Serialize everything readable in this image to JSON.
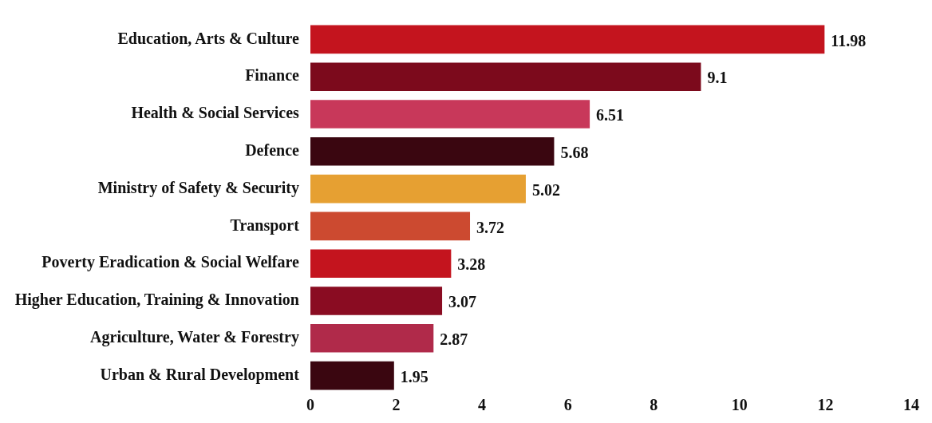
{
  "chart_data": {
    "type": "bar",
    "orientation": "horizontal",
    "categories": [
      "Education, Arts & Culture",
      "Finance",
      "Health & Social Services",
      "Defence",
      "Ministry of Safety & Security",
      "Transport",
      "Poverty Eradication & Social Welfare",
      "Higher Education, Training & Innovation",
      "Agriculture, Water & Forestry",
      "Urban & Rural Development"
    ],
    "values": [
      11.98,
      9.1,
      6.51,
      5.68,
      5.02,
      3.72,
      3.28,
      3.07,
      2.87,
      1.95
    ],
    "colors": [
      "#c4141e",
      "#7c0a1c",
      "#c8385a",
      "#3a0610",
      "#e6a032",
      "#cc4a30",
      "#c4141e",
      "#8a0c22",
      "#b02a4a",
      "#3a0610"
    ],
    "xlim": [
      0,
      14
    ],
    "xticks": [
      0,
      2,
      4,
      6,
      8,
      10,
      12,
      14
    ],
    "grid": false,
    "legend": false,
    "data_labels": true
  }
}
